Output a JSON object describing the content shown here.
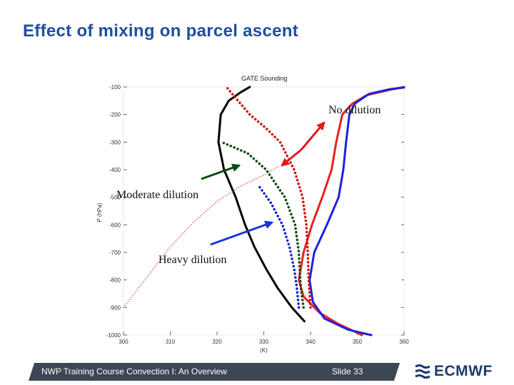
{
  "slide": {
    "title": "Effect of mixing on parcel ascent",
    "footer_left": "NWP Training Course Convection I: An Overview",
    "footer_right": "Slide 33",
    "logo_text": "ECMWF",
    "logo_icon": "ecmwf-wave-icon"
  },
  "callouts": {
    "no_dilution": "No dilution",
    "moderate_dilution": "Moderate dilution",
    "heavy_dilution": "Heavy dilution"
  },
  "colors": {
    "title": "#1f4fa0",
    "sounding": "#000000",
    "environment_red": "#e82020",
    "environment_blue": "#2020dd",
    "no_dilution": "#cc1010",
    "moderate_dilution": "#0b4a12",
    "heavy_dilution": "#1020c8",
    "footer_band": "#3d4754",
    "logo": "#1e3a6e"
  },
  "chart_data": {
    "type": "line",
    "title": "GATE Sounding",
    "xlabel": "(K)",
    "ylabel": "P (hPa)",
    "xlim": [
      300,
      360
    ],
    "ylim": [
      -1000,
      -100
    ],
    "xticks": [
      "300",
      "310",
      "320",
      "330",
      "340",
      "350",
      "360"
    ],
    "yticks": [
      "-100",
      "-200",
      "-300",
      "-400",
      "-500",
      "-600",
      "-700",
      "-800",
      "-900",
      "-1000"
    ],
    "grid": false,
    "series": [
      {
        "key": "theta",
        "style": "solid",
        "color": "#000000",
        "x": [
          338.7,
          336,
          333,
          330.5,
          328,
          326,
          324,
          321.5,
          320.3,
          320.8,
          322.5,
          325,
          327
        ],
        "y": [
          -950,
          -900,
          -830,
          -760,
          -680,
          -600,
          -500,
          -400,
          -300,
          -200,
          -150,
          -120,
          -100
        ]
      },
      {
        "key": "theta_es",
        "style": "solid",
        "color": "#e82020",
        "x": [
          351,
          346,
          342,
          338.5,
          337.5,
          338.5,
          340.3,
          342.5,
          344.5,
          345.5,
          346.8,
          349,
          352,
          357,
          360
        ],
        "y": [
          -1000,
          -960,
          -920,
          -860,
          -800,
          -700,
          -600,
          -500,
          -400,
          -300,
          -200,
          -160,
          -130,
          -110,
          -100
        ]
      },
      {
        "key": "theta_e",
        "style": "solid",
        "color": "#2020dd",
        "x": [
          353,
          348,
          343,
          340.5,
          339.8,
          340.8,
          343.5,
          346,
          347,
          347.6,
          348.3,
          349.5,
          352.5,
          357,
          360
        ],
        "y": [
          -1000,
          -980,
          -940,
          -880,
          -800,
          -700,
          -600,
          -500,
          -400,
          -300,
          -200,
          -160,
          -125,
          -108,
          -102
        ]
      },
      {
        "key": "parcel_no_dilution",
        "style": "dotted",
        "color": "#cc1010",
        "x": [
          340,
          339.6,
          339.4,
          339.1,
          338.3,
          336.5,
          333.5,
          330.5,
          327,
          322
        ],
        "y": [
          -900,
          -800,
          -700,
          -600,
          -500,
          -400,
          -300,
          -250,
          -200,
          -100
        ]
      },
      {
        "key": "parcel_no_dilution_extension",
        "style": "dotted-thin",
        "color": "#e06060",
        "x": [
          300,
          305,
          310,
          315,
          320,
          325,
          330,
          333.5
        ],
        "y": [
          -900,
          -790,
          -680,
          -590,
          -515,
          -460,
          -420,
          -385
        ]
      },
      {
        "key": "parcel_moderate_dilution",
        "style": "dotted",
        "color": "#0b4a12",
        "x": [
          338.5,
          338,
          337.8,
          337.5,
          336.7,
          334.5,
          330.5,
          326.5,
          321
        ],
        "y": [
          -900,
          -840,
          -800,
          -700,
          -600,
          -500,
          -400,
          -340,
          -300
        ]
      },
      {
        "key": "parcel_heavy_dilution",
        "style": "dotted",
        "color": "#1020c8",
        "x": [
          337.5,
          337,
          336.5,
          335.5,
          334,
          331.5,
          329
        ],
        "y": [
          -900,
          -820,
          -760,
          -680,
          -600,
          -520,
          -460
        ]
      }
    ]
  }
}
